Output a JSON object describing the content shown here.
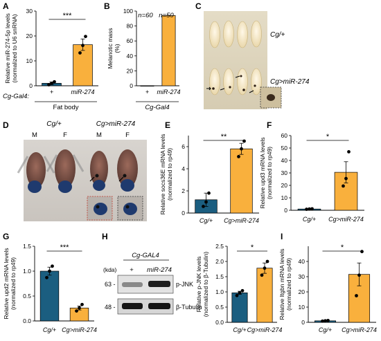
{
  "colors": {
    "blue": "#1b5e80",
    "orange": "#f9b03d",
    "axis": "#000000"
  },
  "panels": {
    "A": {
      "letter": "A",
      "sig": "***",
      "group_label": "Cg-Gal4:",
      "group_bottom": "Fat body"
    },
    "B": {
      "letter": "B",
      "group_label": "Cg-Gal4",
      "n_labels": [
        "n=60",
        "n=50"
      ]
    },
    "C": {
      "letter": "C",
      "label_top": "Cg/+",
      "label_bottom": "Cg>miR-274"
    },
    "D": {
      "letter": "D",
      "group_left": "Cg/+",
      "group_right": "Cg>miR-274",
      "sex_labels": [
        "M",
        "F",
        "M",
        "F"
      ]
    },
    "E": {
      "letter": "E",
      "sig": "**"
    },
    "F": {
      "letter": "F",
      "sig": "*"
    },
    "G": {
      "letter": "G",
      "sig": "***"
    },
    "H": {
      "letter": "H",
      "sig": "*",
      "blot_header": "Cg-GAL4",
      "kda_label": "(kda)",
      "lane_labels": [
        "+",
        "miR-274"
      ],
      "markers": [
        "63 -",
        "48 -"
      ],
      "bands": [
        "p-JNK",
        "β-Tubulin"
      ]
    },
    "I": {
      "letter": "I",
      "sig": "*"
    }
  },
  "chart_data": [
    {
      "panel": "A",
      "type": "bar",
      "categories": [
        "+",
        "miR-274"
      ],
      "values": [
        1.0,
        16.5
      ],
      "errors": [
        0.5,
        2.3
      ],
      "points": [
        [
          0.4,
          1.0,
          1.6
        ],
        [
          13.2,
          16.2,
          19.8
        ]
      ],
      "ylabel": "Relative miR-274-5p levels (normalized to U6 snRNA)",
      "ylim": [
        0,
        30
      ],
      "yticks": [
        0,
        10,
        20,
        30
      ]
    },
    {
      "panel": "B",
      "type": "bar",
      "categories": [
        "+",
        "miR-274"
      ],
      "values": [
        0,
        94
      ],
      "ylabel": "Melanotic mass (%)",
      "ylim": [
        0,
        100
      ],
      "yticks": [
        0,
        20,
        40,
        60,
        80,
        100
      ]
    },
    {
      "panel": "E",
      "type": "bar",
      "categories": [
        "Cg/+",
        "Cg>miR-274"
      ],
      "values": [
        1.2,
        5.8
      ],
      "errors": [
        0.6,
        0.5
      ],
      "points": [
        [
          0.6,
          1.0,
          1.8
        ],
        [
          5.1,
          5.8,
          6.5
        ]
      ],
      "ylabel": "Relative socs36E mRNA levels (normalized to rp49)",
      "ylim": [
        0,
        7
      ],
      "yticks": [
        0,
        2,
        4,
        6
      ]
    },
    {
      "panel": "F",
      "type": "bar",
      "categories": [
        "Cg/+",
        "Cg>miR-274"
      ],
      "values": [
        1.0,
        30.5
      ],
      "errors": [
        0.4,
        8.5
      ],
      "points": [
        [
          0.8,
          1.0,
          1.2
        ],
        [
          19.5,
          25.5,
          47.0
        ]
      ],
      "ylabel": "Relative upd3 mRNA levels (normalized to rp49)",
      "ylim": [
        0,
        60
      ],
      "yticks": [
        0,
        10,
        20,
        30,
        40,
        50,
        60
      ]
    },
    {
      "panel": "G",
      "type": "bar",
      "categories": [
        "Cg/+",
        "Cg>miR-274"
      ],
      "values": [
        1.0,
        0.26
      ],
      "errors": [
        0.08,
        0.04
      ],
      "points": [
        [
          0.87,
          1.0,
          1.1
        ],
        [
          0.2,
          0.26,
          0.33
        ]
      ],
      "ylabel": "Relative upd2 mRNA levels (normalized to rp49)",
      "ylim": [
        0,
        1.5
      ],
      "yticks": [
        0.0,
        0.5,
        1.0,
        1.5
      ]
    },
    {
      "panel": "H",
      "type": "bar",
      "categories": [
        "Cg/+",
        "Cg>miR-274"
      ],
      "values": [
        0.97,
        1.78
      ],
      "errors": [
        0.05,
        0.17
      ],
      "points": [
        [
          0.88,
          0.97,
          1.04
        ],
        [
          1.55,
          1.78,
          2.0
        ]
      ],
      "ylabel": "Relative p-JNK levels (normalized to β-Tubulin)",
      "ylim": [
        0,
        2.5
      ],
      "yticks": [
        0.0,
        0.5,
        1.0,
        1.5,
        2.0,
        2.5
      ]
    },
    {
      "panel": "I",
      "type": "bar",
      "categories": [
        "Cg/+",
        "Cg>miR-274"
      ],
      "values": [
        1.0,
        31.5
      ],
      "errors": [
        0.3,
        7.5
      ],
      "points": [
        [
          0.8,
          1.0,
          1.2
        ],
        [
          17.5,
          31.0,
          46.5
        ]
      ],
      "ylabel": "Relative Itgbn mRNA levels (normalized to rp49)",
      "ylim": [
        0,
        50
      ],
      "yticks": [
        0,
        10,
        20,
        30,
        40
      ]
    }
  ]
}
